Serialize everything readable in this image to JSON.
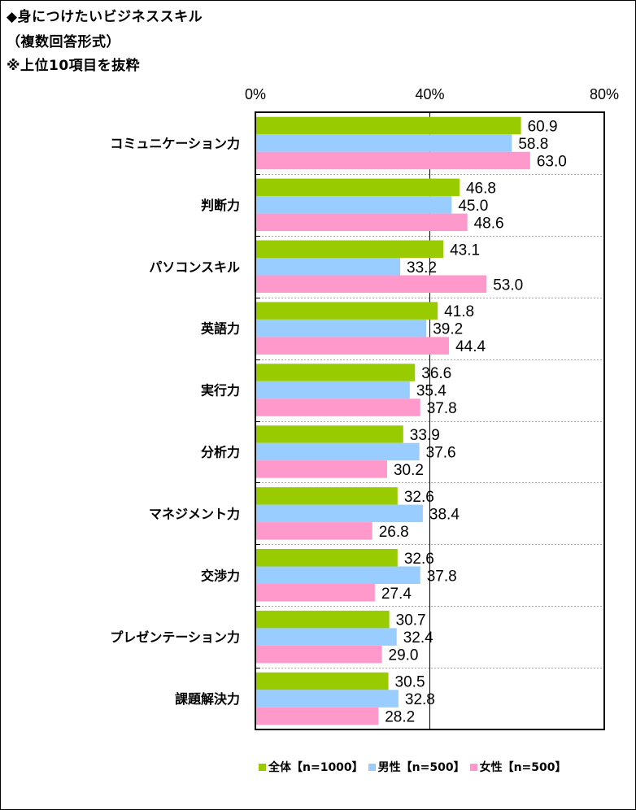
{
  "title": {
    "line1": "◆身につけたいビジネススキル",
    "line2": "（複数回答形式）",
    "line3": "※上位10項目を抜粋"
  },
  "chart_data": {
    "type": "bar",
    "orientation": "horizontal",
    "title": "身につけたいビジネススキル（複数回答形式）※上位10項目を抜粋",
    "xlabel": "",
    "ylabel": "",
    "xlim": [
      0,
      80
    ],
    "x_ticks": [
      0,
      40,
      80
    ],
    "x_tick_labels": [
      "0%",
      "40%",
      "80%"
    ],
    "grid": "dashed horizontal separators between categories",
    "legend_position": "bottom",
    "categories": [
      "コミュニケーション力",
      "判断力",
      "パソコンスキル",
      "英語力",
      "実行力",
      "分析力",
      "マネジメント力",
      "交渉力",
      "プレゼンテーション力",
      "課題解決力"
    ],
    "series": [
      {
        "name": "全体【n=1000】",
        "color": "#99cc00",
        "values": [
          60.9,
          46.8,
          43.1,
          41.8,
          36.6,
          33.9,
          32.6,
          32.6,
          30.7,
          30.5
        ]
      },
      {
        "name": "男性【n=500】",
        "color": "#99ccff",
        "values": [
          58.8,
          45.0,
          33.2,
          39.2,
          35.4,
          37.6,
          38.4,
          37.8,
          32.4,
          32.8
        ]
      },
      {
        "name": "女性【n=500】",
        "color": "#ff99cc",
        "values": [
          63.0,
          48.6,
          53.0,
          44.4,
          37.8,
          30.2,
          26.8,
          27.4,
          29.0,
          28.2
        ]
      }
    ]
  }
}
